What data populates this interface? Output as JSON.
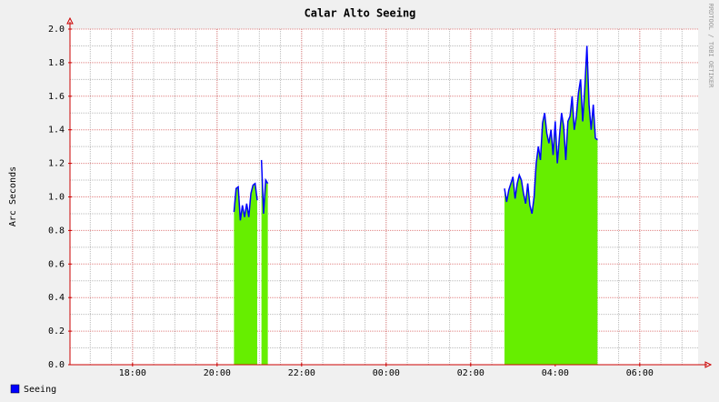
{
  "chart_data": {
    "type": "area",
    "title": "Calar Alto Seeing",
    "ylabel": "Arc Seconds",
    "watermark": "RRDTOOL / TOBI OETIKER",
    "x": [
      20.4,
      20.45,
      20.5,
      20.55,
      20.6,
      20.65,
      20.7,
      20.75,
      20.8,
      20.85,
      20.9,
      20.95,
      21.0,
      21.05,
      21.1,
      21.15,
      21.2,
      24.0,
      26.8,
      26.85,
      26.9,
      26.95,
      27.0,
      27.05,
      27.1,
      27.15,
      27.2,
      27.25,
      27.3,
      27.35,
      27.4,
      27.45,
      27.5,
      27.55,
      27.6,
      27.65,
      27.7,
      27.75,
      27.8,
      27.85,
      27.9,
      27.95,
      28.0,
      28.05,
      28.1,
      28.15,
      28.2,
      28.25,
      28.3,
      28.35,
      28.4,
      28.45,
      28.5,
      28.55,
      28.6,
      28.65,
      28.7,
      28.75,
      28.8,
      28.85,
      28.9,
      28.95,
      29.0
    ],
    "series": [
      {
        "name": "Seeing",
        "color": "#0000ff",
        "fill": "#66ee00",
        "values": [
          0.91,
          1.05,
          1.06,
          0.86,
          0.95,
          0.88,
          0.96,
          0.88,
          1.02,
          1.07,
          1.08,
          0.98,
          null,
          1.22,
          0.9,
          1.1,
          1.08,
          null,
          1.05,
          0.97,
          1.04,
          1.08,
          1.12,
          0.99,
          1.08,
          1.13,
          1.1,
          1.02,
          0.96,
          1.08,
          0.95,
          0.9,
          1.0,
          1.2,
          1.3,
          1.22,
          1.44,
          1.5,
          1.38,
          1.32,
          1.4,
          1.25,
          1.45,
          1.2,
          1.36,
          1.5,
          1.42,
          1.22,
          1.45,
          1.48,
          1.6,
          1.4,
          1.48,
          1.62,
          1.7,
          1.45,
          1.65,
          1.9,
          1.55,
          1.4,
          1.55,
          1.35,
          1.34
        ]
      }
    ],
    "xlim": [
      16.52,
      31.38
    ],
    "xticks": [
      {
        "value": 18,
        "label": "18:00"
      },
      {
        "value": 20,
        "label": "20:00"
      },
      {
        "value": 22,
        "label": "22:00"
      },
      {
        "value": 24,
        "label": "00:00"
      },
      {
        "value": 26,
        "label": "02:00"
      },
      {
        "value": 28,
        "label": "04:00"
      },
      {
        "value": 30,
        "label": "06:00"
      }
    ],
    "ylim": [
      0,
      2
    ],
    "yticks": [
      {
        "value": 0,
        "label": "0.0"
      },
      0.2,
      0.4,
      0.6,
      0.8,
      {
        "value": 1,
        "label": "1.0"
      },
      1.2,
      1.4,
      1.6,
      1.8,
      {
        "value": 2,
        "label": "2.0"
      }
    ],
    "grid": true
  }
}
